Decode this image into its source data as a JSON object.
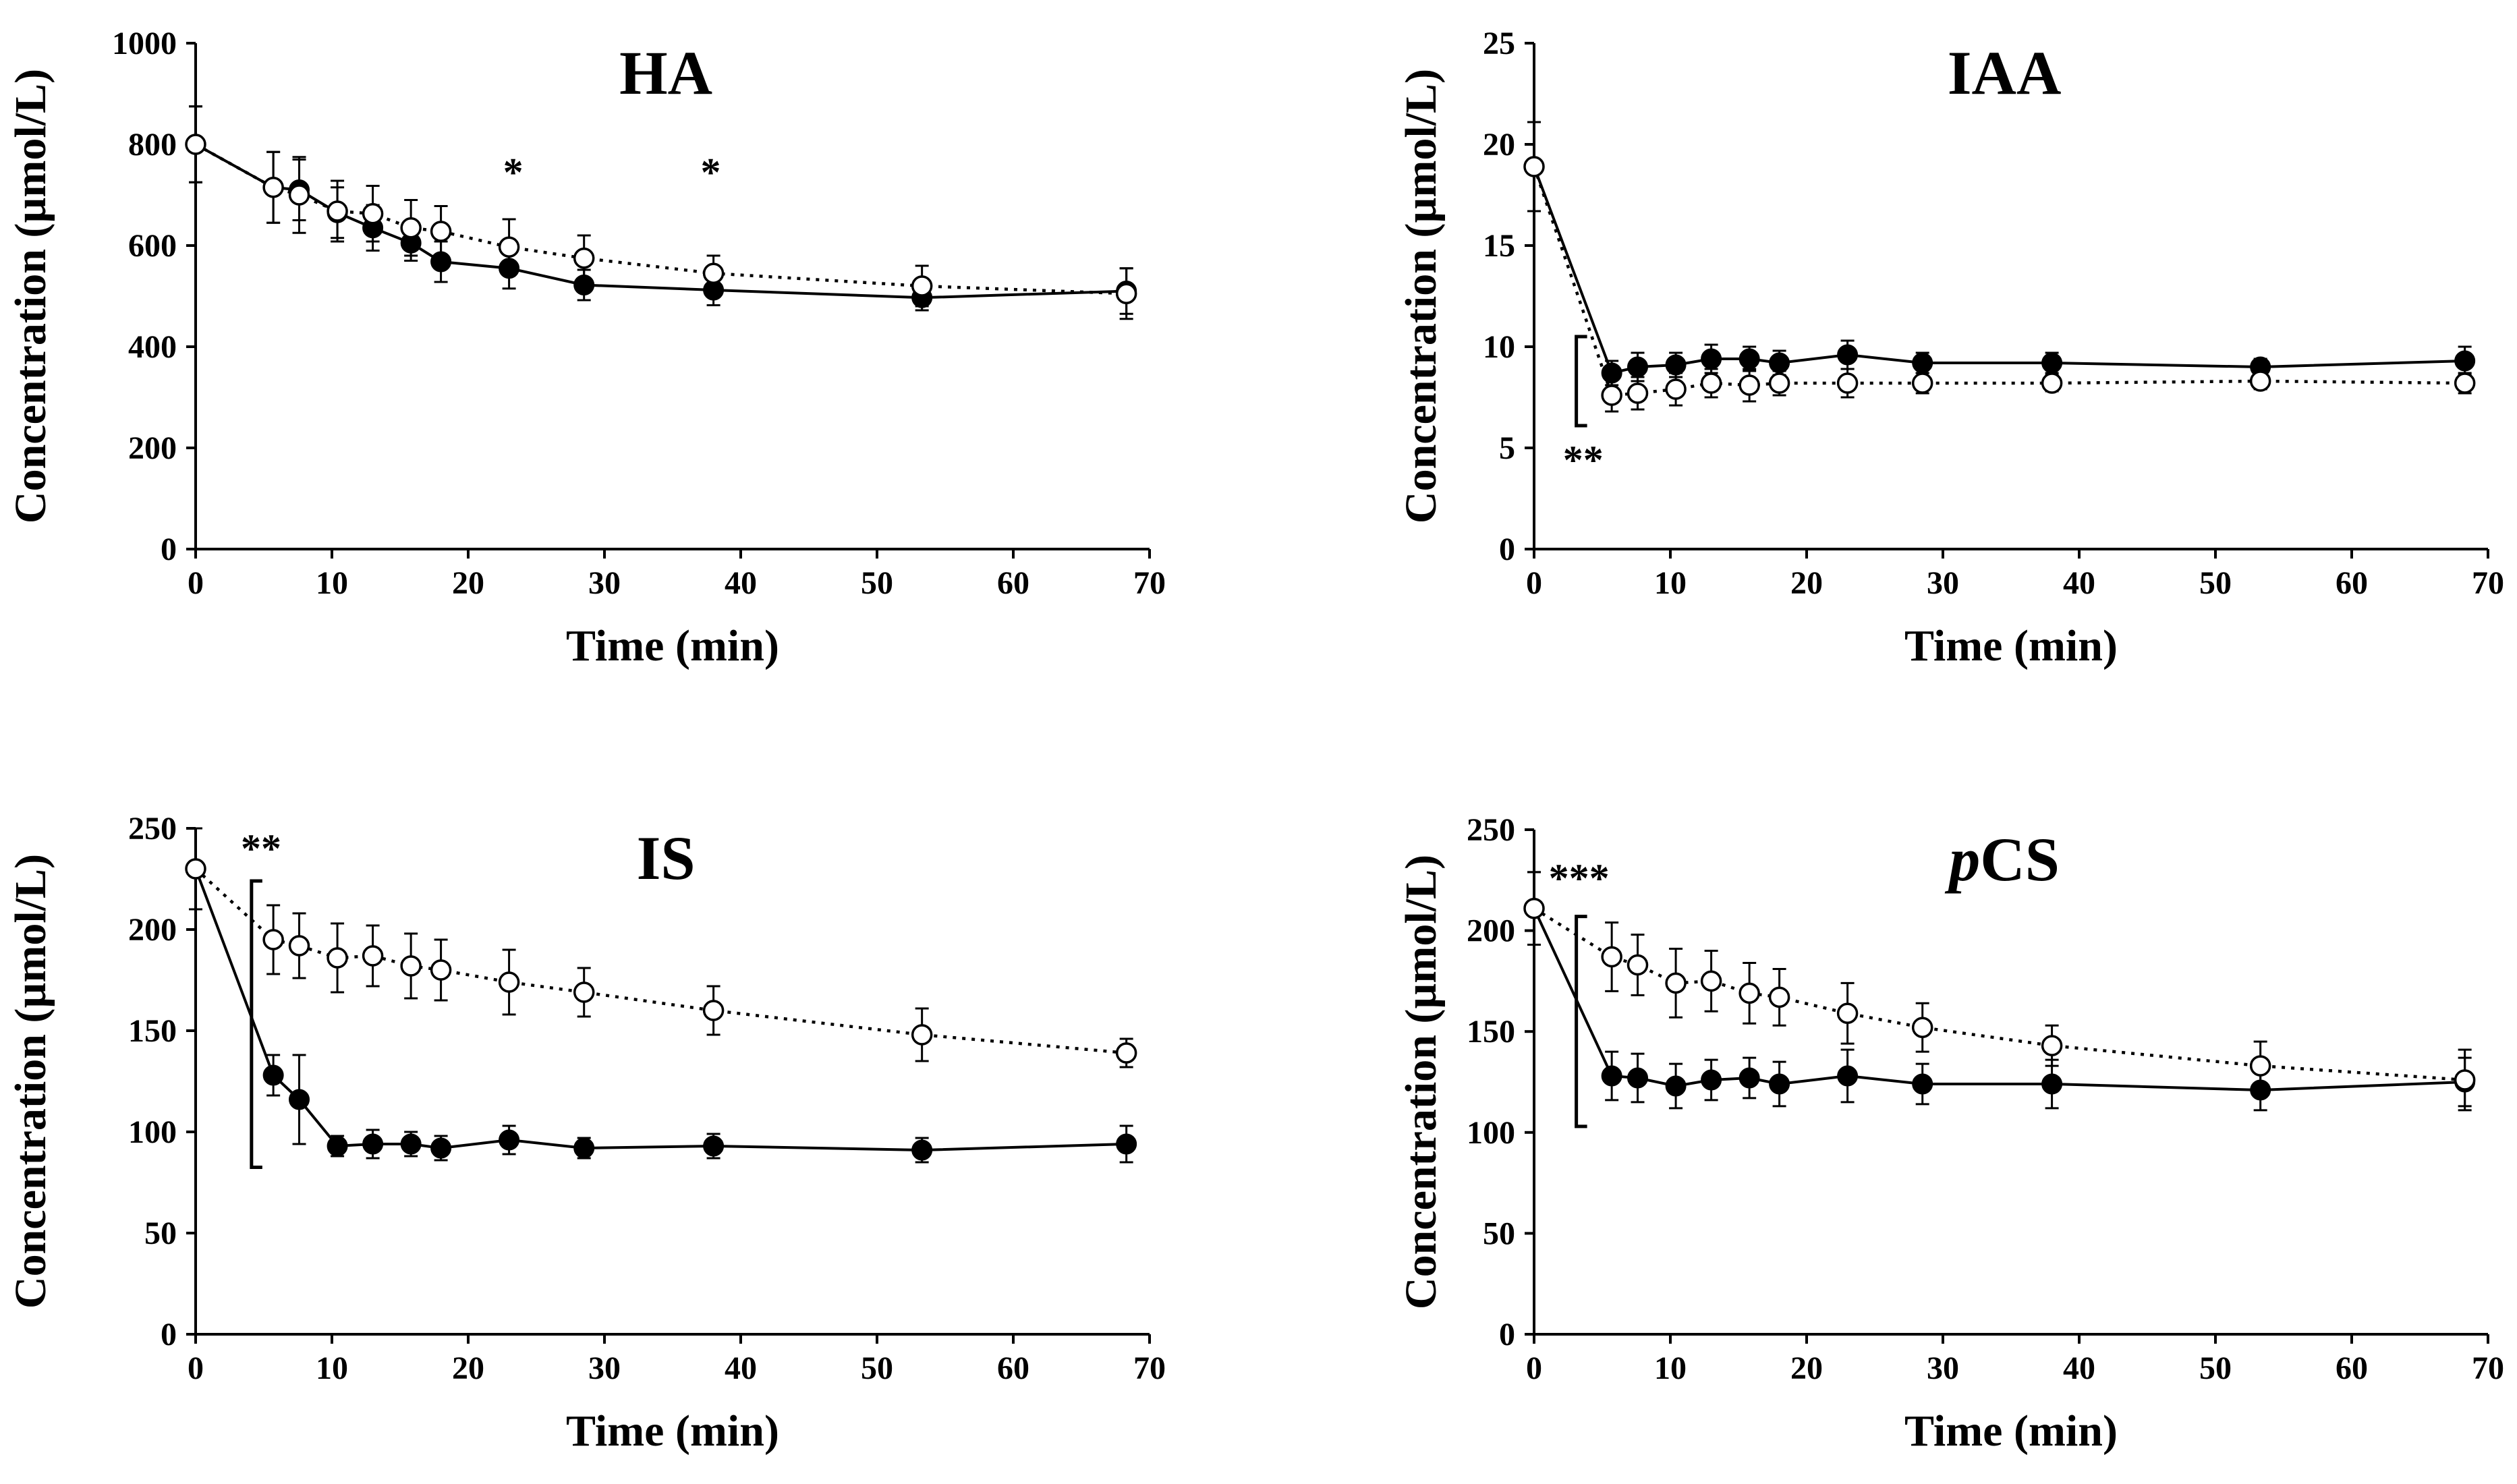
{
  "chart_data": [
    {
      "type": "line",
      "title": "HA",
      "title_italic_chars": 0,
      "xlabel": "Time (min)",
      "ylabel": "Concentration (µmol/L)",
      "xlim": [
        0,
        70
      ],
      "ylim": [
        0,
        1000
      ],
      "xticks": [
        0,
        10,
        20,
        30,
        40,
        50,
        60,
        70
      ],
      "yticks": [
        0,
        200,
        400,
        600,
        800,
        1000
      ],
      "x": [
        0,
        5.7,
        7.6,
        10.4,
        13,
        15.8,
        18,
        23,
        28.5,
        38,
        53.3,
        68.3
      ],
      "series": [
        {
          "filled": true,
          "dotted": false,
          "values": [
            800,
            715,
            710,
            665,
            635,
            605,
            568,
            555,
            522,
            512,
            497,
            510
          ],
          "errors": [
            75,
            70,
            60,
            50,
            45,
            35,
            40,
            40,
            30,
            30,
            25,
            45
          ]
        },
        {
          "filled": false,
          "dotted": true,
          "values": [
            800,
            715,
            700,
            668,
            663,
            635,
            628,
            597,
            575,
            545,
            520,
            505
          ],
          "errors": [
            75,
            70,
            75,
            60,
            55,
            55,
            50,
            55,
            45,
            35,
            40,
            50
          ]
        }
      ],
      "annotations": [
        {
          "text": "*",
          "x": 23.3,
          "y": 745
        },
        {
          "text": "*",
          "x": 37.8,
          "y": 745
        }
      ],
      "brackets": []
    },
    {
      "type": "line",
      "title": "IAA",
      "title_italic_chars": 0,
      "xlabel": "Time (min)",
      "ylabel": "Concentration (µmol/L)",
      "xlim": [
        0,
        70
      ],
      "ylim": [
        0,
        25
      ],
      "xticks": [
        0,
        10,
        20,
        30,
        40,
        50,
        60,
        70
      ],
      "yticks": [
        0,
        5,
        10,
        15,
        20,
        25
      ],
      "x": [
        0,
        5.7,
        7.6,
        10.4,
        13,
        15.8,
        18,
        23,
        28.5,
        38,
        53.3,
        68.3
      ],
      "series": [
        {
          "filled": true,
          "dotted": false,
          "values": [
            18.9,
            8.7,
            9.0,
            9.1,
            9.4,
            9.4,
            9.2,
            9.6,
            9.2,
            9.2,
            9.0,
            9.3
          ],
          "errors": [
            2.2,
            0.6,
            0.7,
            0.6,
            0.7,
            0.6,
            0.6,
            0.7,
            0.5,
            0.5,
            0.4,
            0.7
          ]
        },
        {
          "filled": false,
          "dotted": true,
          "values": [
            18.9,
            7.6,
            7.7,
            7.9,
            8.2,
            8.1,
            8.2,
            8.2,
            8.2,
            8.2,
            8.3,
            8.2
          ],
          "errors": [
            2.2,
            0.8,
            0.8,
            0.8,
            0.7,
            0.8,
            0.6,
            0.7,
            0.5,
            0.4,
            0.4,
            0.5
          ]
        }
      ],
      "annotations": [
        {
          "text": "**",
          "x": 3.6,
          "y": 4.4
        }
      ],
      "brackets": [
        {
          "x": 3.1,
          "y0": 6.1,
          "y1": 10.5
        }
      ]
    },
    {
      "type": "line",
      "title": "IS",
      "title_italic_chars": 0,
      "xlabel": "Time (min)",
      "ylabel": "Concentration (µmol/L)",
      "xlim": [
        0,
        70
      ],
      "ylim": [
        0,
        250
      ],
      "xticks": [
        0,
        10,
        20,
        30,
        40,
        50,
        60,
        70
      ],
      "yticks": [
        0,
        50,
        100,
        150,
        200,
        250
      ],
      "x": [
        0,
        5.7,
        7.6,
        10.4,
        13,
        15.8,
        18,
        23,
        28.5,
        38,
        53.3,
        68.3
      ],
      "series": [
        {
          "filled": true,
          "dotted": false,
          "values": [
            230,
            128,
            116,
            93,
            94,
            94,
            92,
            96,
            92,
            93,
            91,
            94
          ],
          "errors": [
            20,
            10,
            22,
            5,
            7,
            6,
            6,
            7,
            5,
            6,
            6,
            9
          ]
        },
        {
          "filled": false,
          "dotted": true,
          "values": [
            230,
            195,
            192,
            186,
            187,
            182,
            180,
            174,
            169,
            160,
            148,
            139
          ],
          "errors": [
            20,
            17,
            16,
            17,
            15,
            16,
            15,
            16,
            12,
            12,
            13,
            7
          ]
        }
      ],
      "annotations": [
        {
          "text": "**",
          "x": 4.8,
          "y": 240
        }
      ],
      "brackets": [
        {
          "x": 4.1,
          "y0": 82.5,
          "y1": 224
        }
      ]
    },
    {
      "type": "line",
      "title": "pCS",
      "title_italic_chars": 1,
      "xlabel": "Time (min)",
      "ylabel": "Concentration (µmol/L)",
      "xlim": [
        0,
        70
      ],
      "ylim": [
        0,
        250
      ],
      "xticks": [
        0,
        10,
        20,
        30,
        40,
        50,
        60,
        70
      ],
      "yticks": [
        0,
        50,
        100,
        150,
        200,
        250
      ],
      "x": [
        0,
        5.7,
        7.6,
        10.4,
        13,
        15.8,
        18,
        23,
        28.5,
        38,
        53.3,
        68.3
      ],
      "series": [
        {
          "filled": true,
          "dotted": false,
          "values": [
            211,
            128,
            127,
            123,
            126,
            127,
            124,
            128,
            124,
            124,
            121,
            125
          ],
          "errors": [
            18,
            12,
            12,
            11,
            10,
            10,
            11,
            13,
            10,
            12,
            10,
            12
          ]
        },
        {
          "filled": false,
          "dotted": true,
          "values": [
            211,
            187,
            183,
            174,
            175,
            169,
            167,
            159,
            152,
            143,
            133,
            126
          ],
          "errors": [
            18,
            17,
            15,
            17,
            15,
            15,
            14,
            15,
            12,
            10,
            12,
            15
          ]
        }
      ],
      "annotations": [
        {
          "text": "***",
          "x": 3.3,
          "y": 226
        }
      ],
      "brackets": [
        {
          "x": 3.1,
          "y0": 103,
          "y1": 207
        }
      ]
    }
  ]
}
